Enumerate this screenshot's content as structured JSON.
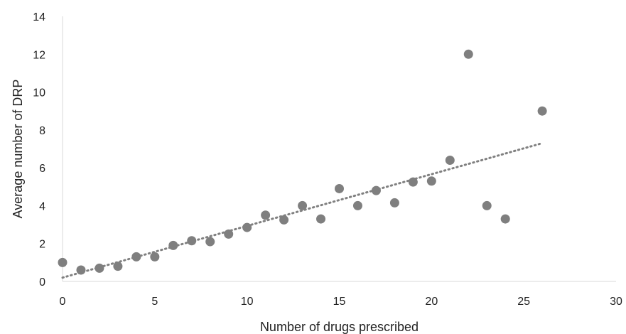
{
  "chart_data": {
    "type": "scatter",
    "title": "",
    "xlabel": "Number of drugs prescribed",
    "ylabel": "Average number of DRP",
    "xlim": [
      0,
      30
    ],
    "ylim": [
      0,
      14
    ],
    "x_ticks": [
      "0",
      "5",
      "10",
      "15",
      "20",
      "25",
      "30"
    ],
    "y_ticks": [
      "0",
      "2",
      "4",
      "6",
      "8",
      "10",
      "12",
      "14"
    ],
    "grid": false,
    "legend": "none",
    "colors": {
      "points": "#7f7f7f",
      "trendline": "#808080",
      "axis": "#d9d9d9"
    },
    "series": [
      {
        "points": [
          [
            0,
            1.0
          ],
          [
            1,
            0.6
          ],
          [
            2,
            0.7
          ],
          [
            3,
            0.8
          ],
          [
            4,
            1.3
          ],
          [
            5,
            1.3
          ],
          [
            6,
            1.9
          ],
          [
            7,
            2.15
          ],
          [
            8,
            2.1
          ],
          [
            9,
            2.5
          ],
          [
            10,
            2.85
          ],
          [
            11,
            3.5
          ],
          [
            12,
            3.25
          ],
          [
            13,
            4.0
          ],
          [
            14,
            3.3
          ],
          [
            15,
            4.9
          ],
          [
            16,
            4.0
          ],
          [
            17,
            4.8
          ],
          [
            18,
            4.15
          ],
          [
            19,
            5.25
          ],
          [
            20,
            5.3
          ],
          [
            21,
            6.4
          ],
          [
            22,
            12.0
          ],
          [
            23,
            4.0
          ],
          [
            24,
            3.3
          ],
          [
            26,
            9.0
          ]
        ]
      }
    ],
    "trendline": {
      "style": "dotted",
      "start": [
        0,
        0.2
      ],
      "end": [
        26,
        7.3
      ]
    }
  }
}
